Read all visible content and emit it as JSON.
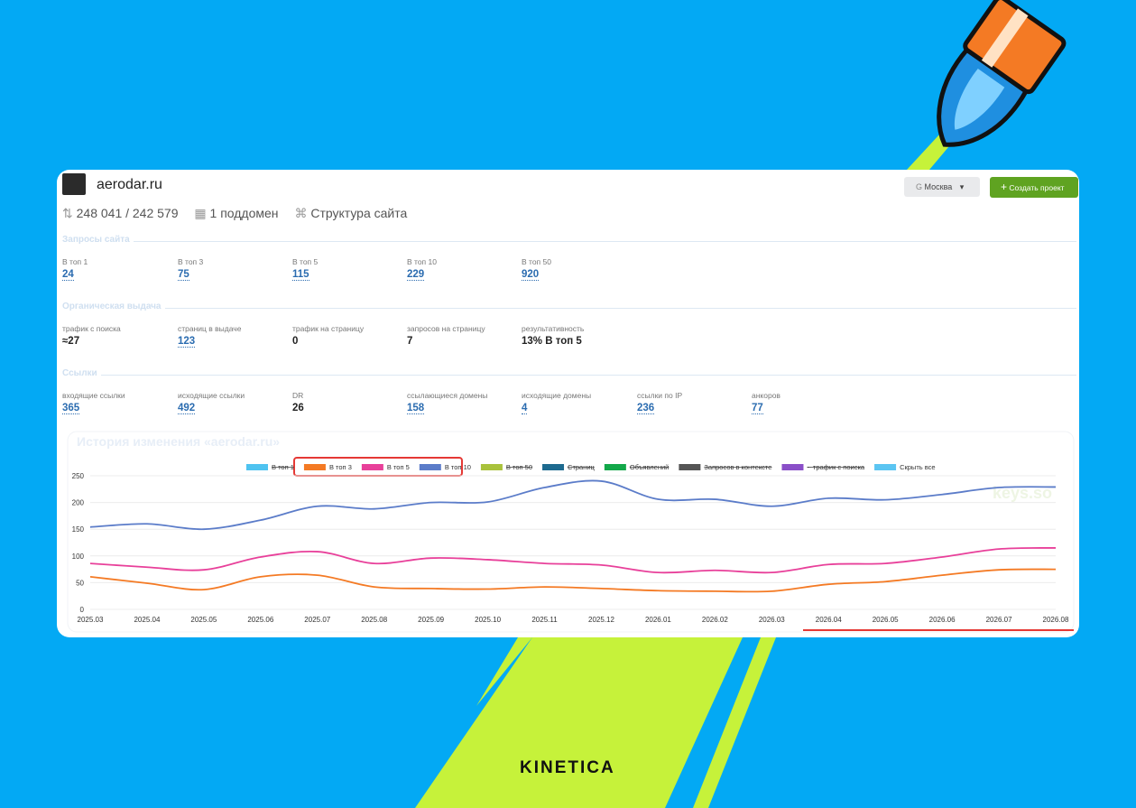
{
  "header": {
    "site": "aerodar.ru",
    "stats": "248 041 / 242 579",
    "subdomains": "1 поддомен",
    "structure": "Структура сайта",
    "region": "Москва",
    "create_button": "Создать проект"
  },
  "sections": [
    {
      "title": "Запросы сайта",
      "metrics": [
        {
          "label": "В топ 1",
          "value": 24,
          "link": true
        },
        {
          "label": "В топ 3",
          "value": 75,
          "link": true
        },
        {
          "label": "В топ 5",
          "value": 115,
          "link": true
        },
        {
          "label": "В топ 10",
          "value": 229,
          "link": true
        },
        {
          "label": "В топ 50",
          "value": 920,
          "link": true
        }
      ]
    },
    {
      "title": "Органическая выдача",
      "metrics": [
        {
          "label": "трафик с поиска",
          "value": "≈27",
          "link": false
        },
        {
          "label": "страниц в выдаче",
          "value": 123,
          "link": true
        },
        {
          "label": "трафик на страницу",
          "value": 0,
          "link": false
        },
        {
          "label": "запросов на страницу",
          "value": 7,
          "link": false
        },
        {
          "label": "результативность",
          "value": "13% В топ 5",
          "link": false
        }
      ]
    },
    {
      "title": "Ссылки",
      "metrics": [
        {
          "label": "входящие ссылки",
          "value": 365,
          "link": true
        },
        {
          "label": "исходящие ссылки",
          "value": 492,
          "link": true
        },
        {
          "label": "DR",
          "value": 26,
          "link": false
        },
        {
          "label": "ссылающиеся домены",
          "value": 158,
          "link": true
        },
        {
          "label": "исходящие домены",
          "value": 4,
          "link": true
        },
        {
          "label": "ссылки по IP",
          "value": 236,
          "link": true
        },
        {
          "label": "анкоров",
          "value": 77,
          "link": true
        }
      ]
    }
  ],
  "chart_data": {
    "type": "line",
    "title": "История изменения «aerodar.ru»",
    "watermark": "keys.so",
    "categories": [
      "2025.03",
      "2025.04",
      "2025.05",
      "2025.06",
      "2025.07",
      "2025.08",
      "2025.09",
      "2025.10",
      "2025.11",
      "2025.12",
      "2026.01",
      "2026.02",
      "2026.03",
      "2026.04",
      "2026.05",
      "2026.06",
      "2026.07",
      "2026.08"
    ],
    "series": [
      {
        "name": "В топ 3",
        "color": "#f47a24",
        "values": [
          61,
          49,
          37,
          61,
          64,
          42,
          39,
          38,
          42,
          39,
          35,
          34,
          34,
          47,
          52,
          64,
          74,
          75
        ]
      },
      {
        "name": "В топ 5",
        "color": "#e8409a",
        "values": [
          86,
          79,
          74,
          98,
          108,
          86,
          96,
          93,
          86,
          83,
          69,
          73,
          69,
          84,
          86,
          98,
          113,
          115
        ]
      },
      {
        "name": "В топ 10",
        "color": "#5b7cc9",
        "values": [
          154,
          160,
          150,
          167,
          193,
          188,
          200,
          201,
          228,
          240,
          206,
          206,
          193,
          208,
          205,
          215,
          228,
          229
        ]
      }
    ],
    "hidden_series": [
      {
        "name": "В топ 1",
        "color": "#4fc3f0"
      },
      {
        "name": "В топ 50",
        "color": "#a9c23c"
      },
      {
        "name": "Страниц",
        "color": "#1d6a8f"
      },
      {
        "name": "Объявлений",
        "color": "#13a84a"
      },
      {
        "name": "Запросов в контексте",
        "color": "#555555"
      },
      {
        "name": "~ трафик с поиска",
        "color": "#8a4fc8"
      }
    ],
    "hide_all": {
      "name": "Скрыть все",
      "color": "#5bc5f2"
    },
    "ylim": [
      0,
      250
    ],
    "yticks": [
      0,
      50,
      100,
      150,
      200,
      250
    ],
    "grid": true
  },
  "brand": "KINETICA"
}
